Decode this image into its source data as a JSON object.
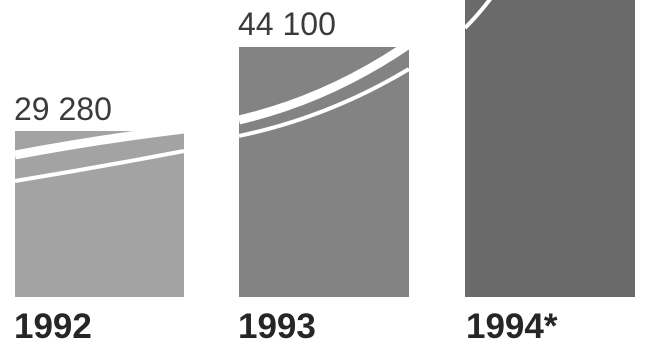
{
  "chart_data": {
    "type": "bar",
    "categories": [
      "1992",
      "1993",
      "1994*"
    ],
    "values": [
      29280,
      44100,
      null
    ],
    "value_labels": [
      "29 280",
      "44 100",
      ""
    ],
    "colors": [
      "#a3a3a3",
      "#838383",
      "#6a6a6a"
    ],
    "background": "#ffffff"
  }
}
